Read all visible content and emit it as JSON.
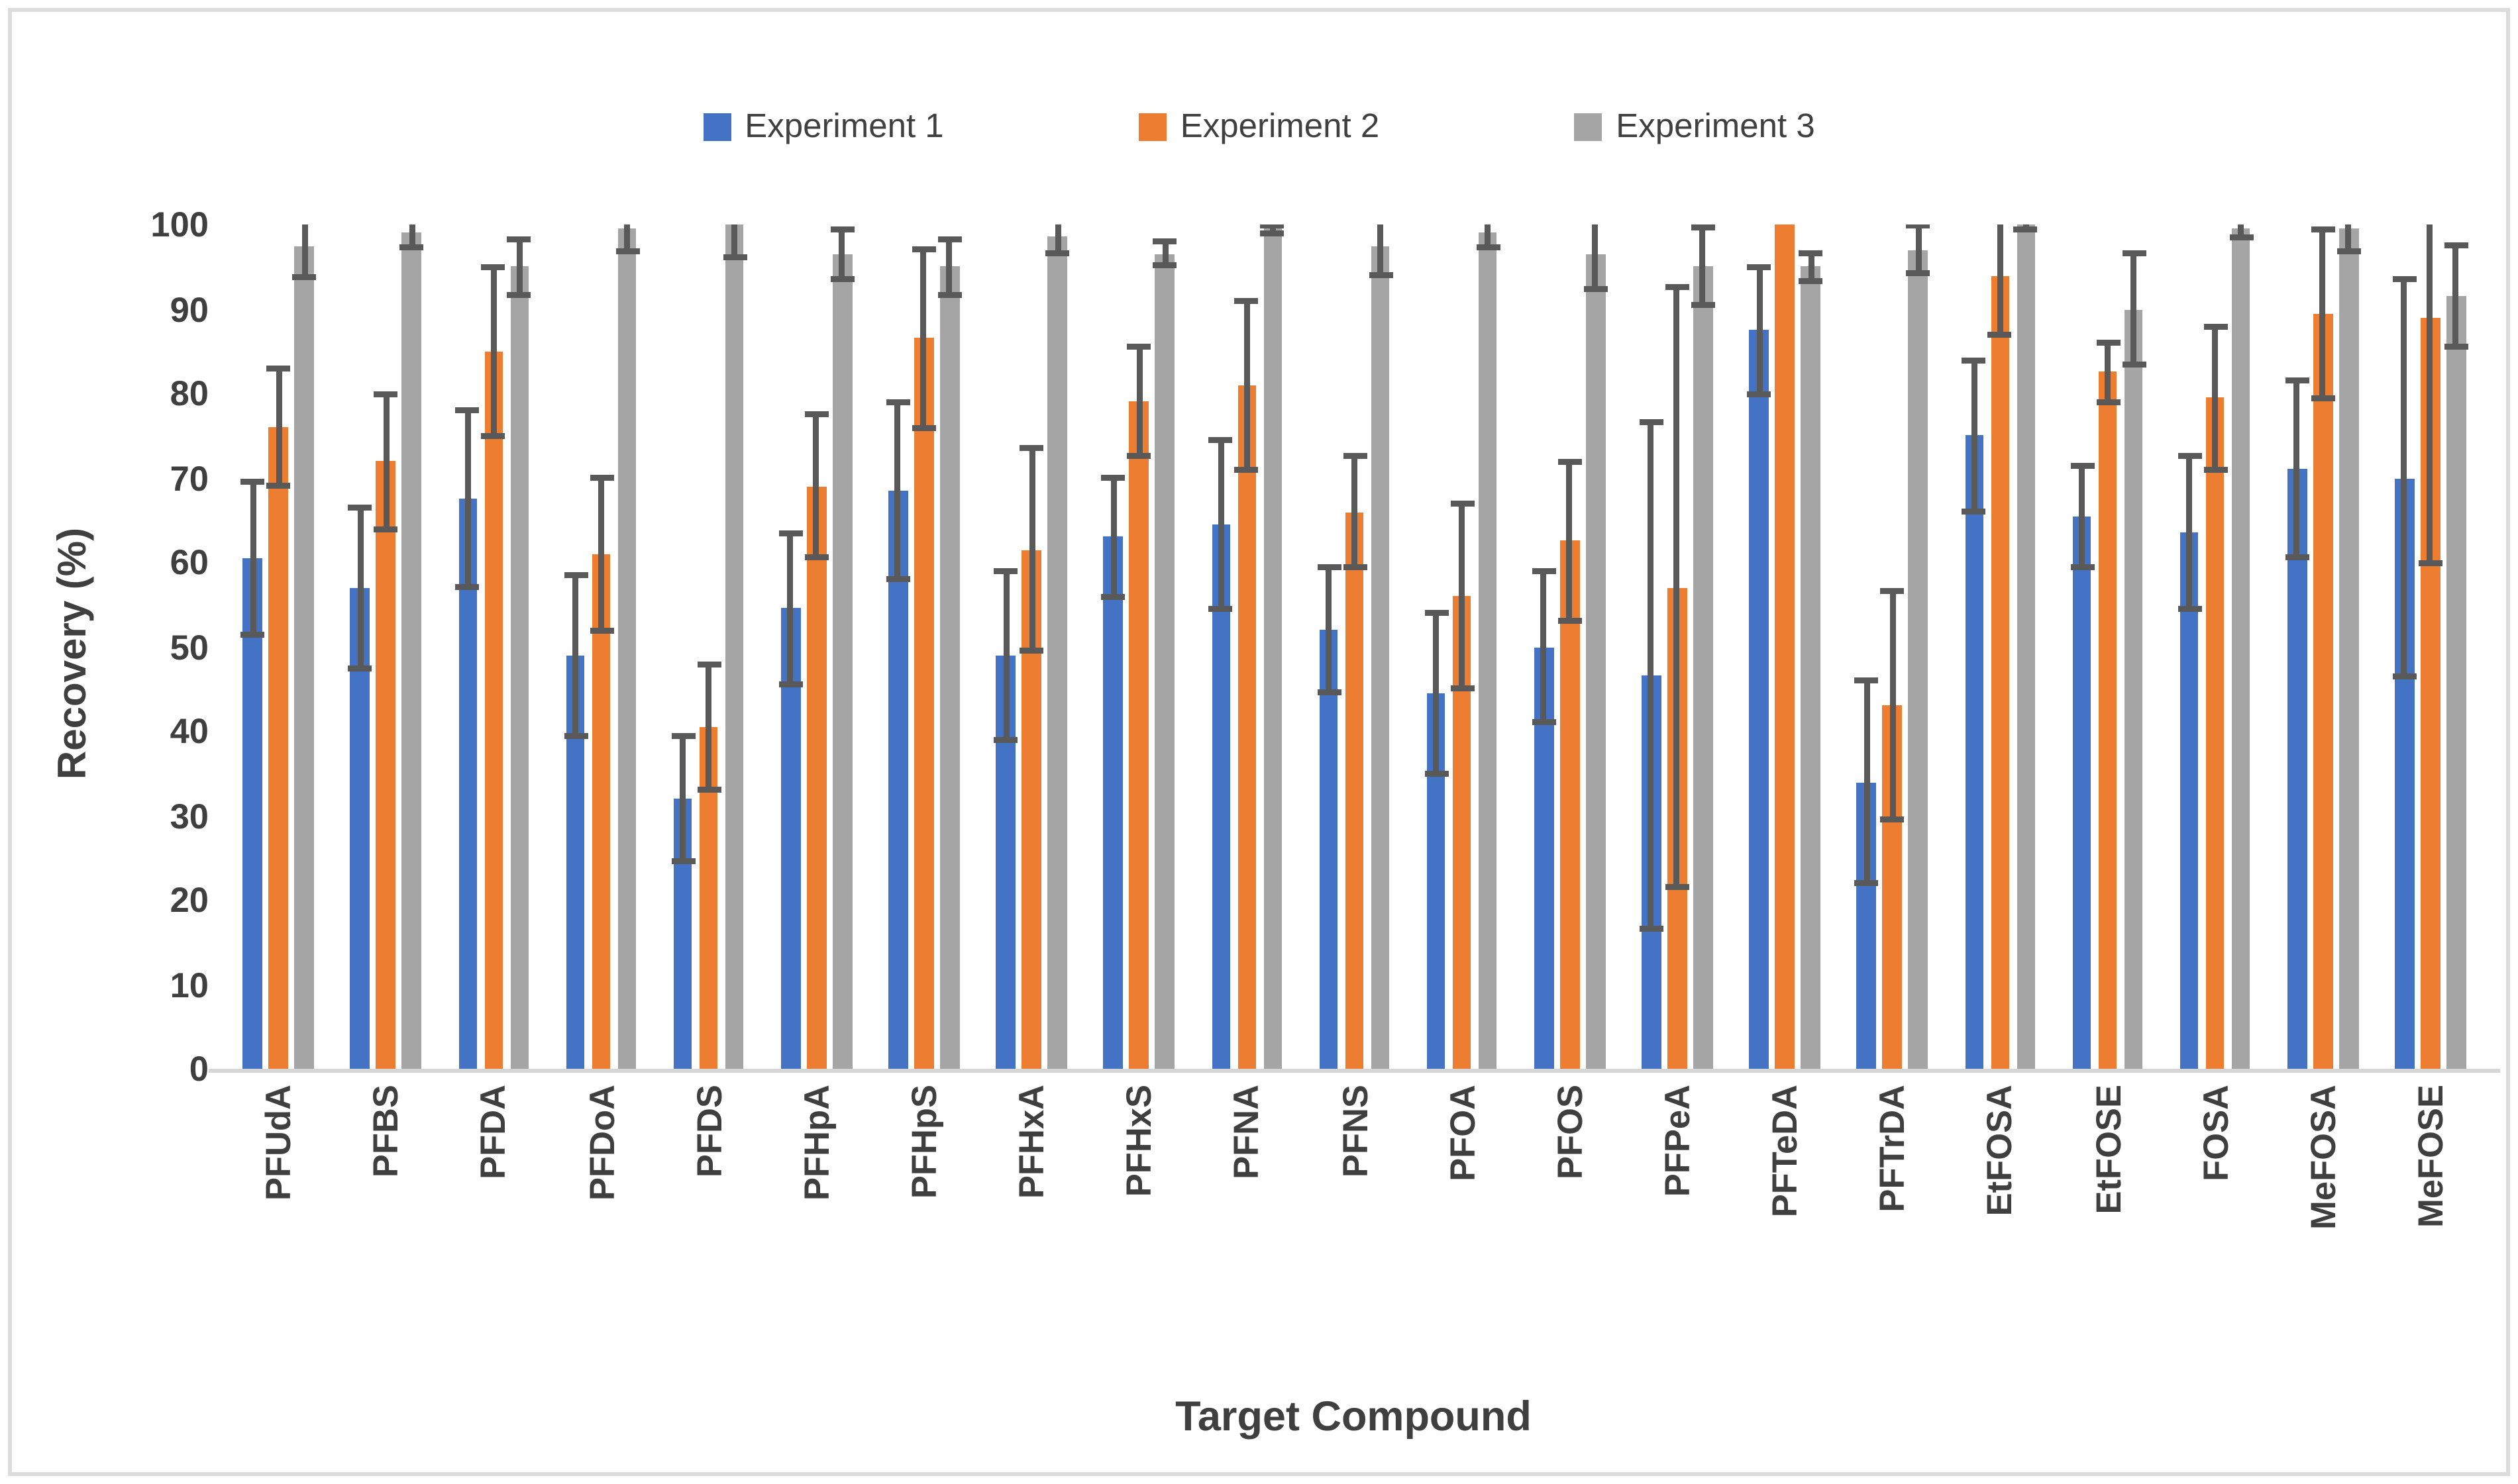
{
  "chart_data": {
    "type": "bar",
    "title": "",
    "xlabel": "Target Compound",
    "ylabel": "Recovery (%)",
    "ylim": [
      0,
      100
    ],
    "yticks": [
      0,
      10,
      20,
      30,
      40,
      50,
      60,
      70,
      80,
      90,
      100
    ],
    "grid": "off",
    "legend_position": "top-center",
    "plot_background": "#ffffff",
    "axis_line_color": "#d6d6d6",
    "error_bar_color": "#595959",
    "text_color": "#3f3f3f",
    "categories": [
      "PFUdA",
      "PFBS",
      "PFDA",
      "PFDoA",
      "PFDS",
      "PFHpA",
      "PFHpS",
      "PFHxA",
      "PFHxS",
      "PFNA",
      "PFNS",
      "PFOA",
      "PFOS",
      "PFPeA",
      "PFTeDA",
      "PFTrDA",
      "EtFOSA",
      "EtFOSE",
      "FOSA",
      "MeFOSA",
      "MeFOSE"
    ],
    "series": [
      {
        "name": "Experiment 1",
        "color": "#4472C4",
        "values": [
          60.5,
          57,
          67.5,
          49,
          32,
          54.5,
          68.5,
          49,
          63,
          64.5,
          52,
          44.5,
          50,
          46.5,
          87.5,
          34,
          75,
          65.5,
          63.5,
          71,
          70
        ],
        "errors": [
          9,
          9.5,
          10.5,
          9.5,
          7.5,
          9,
          10.5,
          10,
          7,
          10,
          7.5,
          9.5,
          9,
          30,
          7.5,
          12,
          9,
          6,
          9,
          10.5,
          23.5
        ]
      },
      {
        "name": "Experiment 2",
        "color": "#ED7D31",
        "values": [
          76,
          72,
          85,
          61,
          40.5,
          69,
          86.5,
          61.5,
          79,
          81,
          66,
          56,
          62.5,
          57,
          100,
          43,
          94,
          82.5,
          79.5,
          89.5,
          89
        ],
        "errors": [
          7,
          8,
          10,
          9,
          7.5,
          8.5,
          10.5,
          12,
          6.5,
          10,
          6.5,
          11,
          9.5,
          35.5,
          0,
          13.5,
          7,
          3.5,
          8.5,
          10,
          29
        ]
      },
      {
        "name": "Experiment 3",
        "color": "#A5A5A5",
        "values": [
          97.5,
          99,
          95,
          99.5,
          100,
          96.5,
          95,
          98.5,
          96.5,
          99.5,
          97.5,
          99,
          96.5,
          95,
          95,
          97,
          100,
          90,
          99.5,
          99.5,
          91.5
        ],
        "errors": [
          3.7,
          1.7,
          3.3,
          2.6,
          3.9,
          2.9,
          3.3,
          1.8,
          1.4,
          0.5,
          3.6,
          1.6,
          4.1,
          4.6,
          1.6,
          2.8,
          0.6,
          6.5,
          1.1,
          2.6,
          6
        ]
      }
    ]
  }
}
